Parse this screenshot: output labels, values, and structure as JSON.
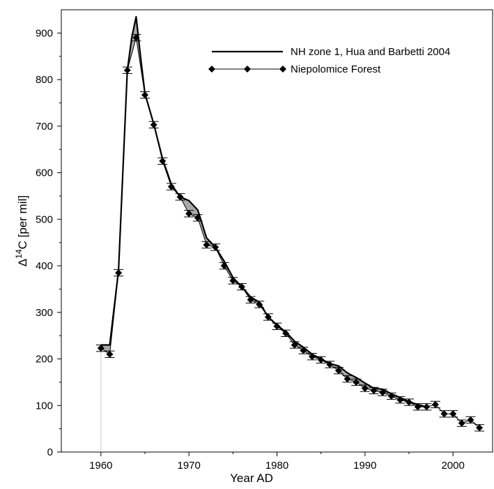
{
  "chart_data": {
    "type": "line",
    "title": "",
    "xlabel": "Year AD",
    "ylabel_parts": {
      "delta": "Δ",
      "superscript": "14",
      "rest": "C [per mil]"
    },
    "xlim": [
      1955.5,
      2004.5
    ],
    "ylim": [
      0,
      950
    ],
    "x_ticks": [
      1960,
      1970,
      1980,
      1990,
      2000
    ],
    "y_ticks": [
      0,
      100,
      200,
      300,
      400,
      500,
      600,
      700,
      800,
      900
    ],
    "grid": false,
    "legend_placement": "top-right",
    "series": [
      {
        "name": "NH zone 1, Hua and Barbetti 2004",
        "style": "line",
        "x": [
          1960,
          1960.5,
          1961,
          1962,
          1963,
          1963.5,
          1964,
          1964.5,
          1965,
          1966,
          1967,
          1968,
          1969,
          1970,
          1971,
          1972,
          1973,
          1974,
          1975,
          1976,
          1977,
          1978,
          1979,
          1980,
          1981,
          1982,
          1983,
          1984,
          1985,
          1986,
          1987,
          1988,
          1989,
          1990,
          1991,
          1992,
          1993,
          1994,
          1995,
          1996,
          1997
        ],
        "values": [
          230,
          230,
          230,
          390,
          820,
          890,
          935,
          850,
          770,
          705,
          630,
          575,
          548,
          540,
          520,
          460,
          440,
          410,
          375,
          355,
          333,
          322,
          290,
          273,
          258,
          238,
          225,
          210,
          200,
          190,
          185,
          170,
          160,
          148,
          137,
          135,
          125,
          117,
          108,
          102,
          97
        ]
      },
      {
        "name": "Niepolomice Forest",
        "style": "line-diamond-errorbars",
        "x": [
          1960,
          1961,
          1962,
          1963,
          1964,
          1965,
          1966,
          1967,
          1968,
          1969,
          1970,
          1971,
          1972,
          1973,
          1974,
          1975,
          1976,
          1977,
          1978,
          1979,
          1980,
          1981,
          1982,
          1983,
          1984,
          1985,
          1986,
          1987,
          1988,
          1989,
          1990,
          1991,
          1992,
          1993,
          1994,
          1995,
          1996,
          1997,
          1998,
          1999,
          2000,
          2001,
          2002,
          2003
        ],
        "values": [
          223,
          210,
          385,
          820,
          890,
          767,
          703,
          625,
          570,
          548,
          512,
          503,
          445,
          440,
          400,
          368,
          355,
          327,
          317,
          290,
          270,
          255,
          230,
          218,
          205,
          198,
          188,
          175,
          157,
          150,
          137,
          132,
          128,
          120,
          112,
          107,
          97,
          97,
          102,
          82,
          82,
          62,
          69,
          52
        ],
        "error": [
          7,
          7,
          7,
          7,
          7,
          7,
          7,
          7,
          7,
          7,
          7,
          7,
          7,
          7,
          7,
          7,
          7,
          7,
          7,
          7,
          7,
          7,
          7,
          7,
          7,
          7,
          7,
          7,
          7,
          7,
          7,
          7,
          7,
          7,
          7,
          7,
          7,
          7,
          7,
          7,
          7,
          7,
          7,
          7
        ]
      }
    ]
  },
  "colors": {
    "line": "#000000",
    "shade": "#8c8c8c",
    "marker": "#000000",
    "axis": "#000000",
    "drop_line": "#c8c8c8"
  }
}
